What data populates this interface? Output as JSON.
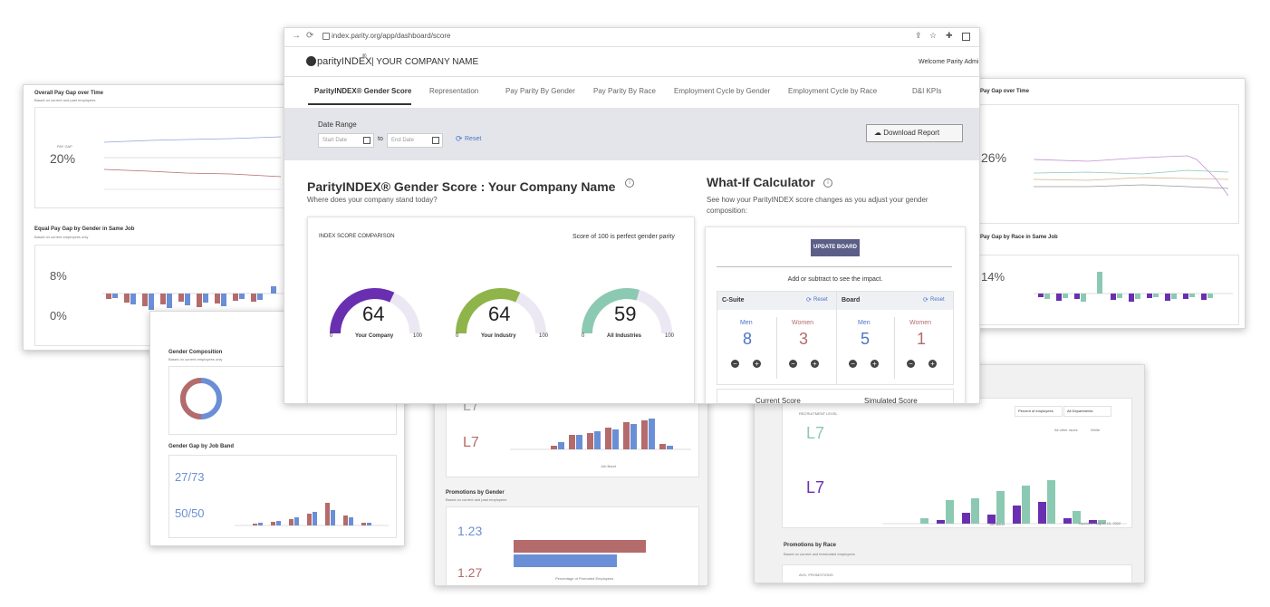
{
  "browser": {
    "url": "index.parity.org/app/dashboard/score"
  },
  "app": {
    "logo": "parityINDEX",
    "logo_sup": "®",
    "company": "| YOUR COMPANY NAME",
    "welcome": "Welcome Parity Admi"
  },
  "tabs": [
    "ParityINDEX® Gender Score",
    "Representation",
    "Pay Parity By Gender",
    "Pay Parity By Race",
    "Employment Cycle by Gender",
    "Employment Cycle by Race",
    "D&I KPIs"
  ],
  "filters": {
    "label": "Date Range",
    "start_placeholder": "Start Date",
    "to": "to",
    "end_placeholder": "End Date",
    "reset": "Reset",
    "download": "Download Report"
  },
  "score": {
    "title": "ParityINDEX® Gender Score : Your Company Name",
    "subtitle": "Where does your company stand today?",
    "comparison_label": "INDEX SCORE COMPARISON",
    "perfect_note": "Score of 100 is perfect gender parity",
    "gauges": [
      {
        "value": "64",
        "label": "Your Company",
        "min": "0",
        "max": "100",
        "fraction": 0.64,
        "color": "#6a2fb0"
      },
      {
        "value": "64",
        "label": "Your Industry",
        "min": "0",
        "max": "100",
        "fraction": 0.64,
        "color": "#8fb54a"
      },
      {
        "value": "59",
        "label": "All Industries",
        "min": "0",
        "max": "100",
        "fraction": 0.59,
        "color": "#8cc9b3"
      }
    ]
  },
  "whatif": {
    "title": "What-If Calculator",
    "desc": "See how your ParityINDEX score changes as you adjust your gender composition:",
    "update": "UPDATE BOARD",
    "impact": "Add or subtract to see the impact.",
    "csuite": {
      "title": "C-Suite",
      "reset": "Reset",
      "men_label": "Men",
      "women_label": "Women",
      "men": "8",
      "women": "3"
    },
    "board": {
      "title": "Board",
      "reset": "Reset",
      "men_label": "Men",
      "women_label": "Women",
      "men": "5",
      "women": "1"
    },
    "current": "Current Score",
    "simulated": "Simulated Score"
  },
  "bg_top_left": {
    "title": "Overall Pay Gap over Time",
    "sub": "Based on current and past employees",
    "gap_label": "PAY GAP",
    "gap_value": "20%",
    "section2": "Equal Pay Gap by Gender in Same Job",
    "section2_sub": "Based on current employees only",
    "largest": "8%",
    "smallest": "0%"
  },
  "bg_top_right": {
    "title": "Pay Gap over Time",
    "gap_value": "26%",
    "section2": "Pay Gap by Race in Same Job",
    "largest": "14%"
  },
  "bg_left_mid": {
    "title": "Gender Composition",
    "sub": "Based on current employees only",
    "section2": "Gender Gap by Job Band",
    "largest": "27/73",
    "smallest": "50/50"
  },
  "bg_center": {
    "band_a": "L7",
    "band_b": "L7",
    "section": "Promotions by Gender",
    "section_sub": "Based on current and past employees",
    "promo_a": "1.23",
    "promo_b": "1.27",
    "xlabel": "Job Band",
    "xlabel2": "Percentage of Promoted Employees"
  },
  "bg_right": {
    "level_a_label": "RECRUITMENT LEVEL",
    "level_a": "L7",
    "level_b": "L7",
    "xlabel": "Job Band",
    "ylabel": "% of Employees",
    "updated": "Updated: August 10, 2022",
    "section": "Promotions by Race",
    "section_sub": "Based on current and terminated employees",
    "promo_label": "AVG. PROMOTIONS",
    "dropdown_a": "Percent of employees",
    "dropdown_b": "All Departments",
    "legend_a": "All other races",
    "legend_b": "White"
  }
}
